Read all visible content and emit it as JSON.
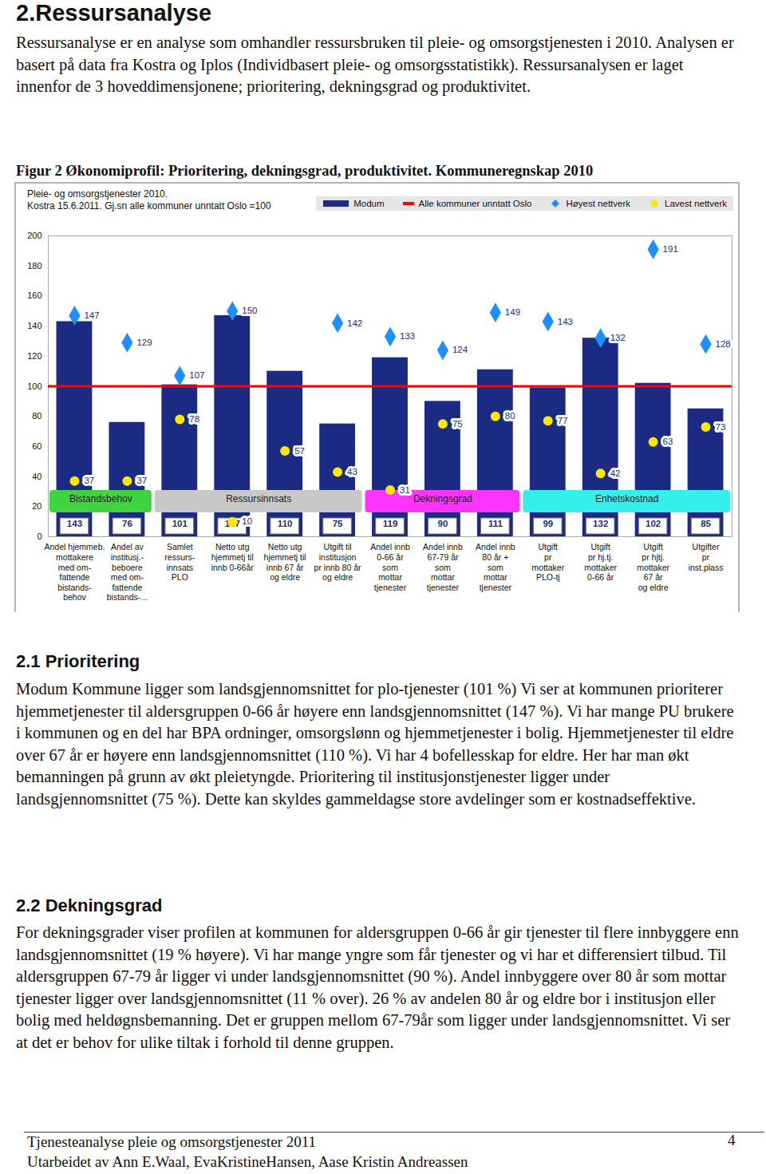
{
  "heading": "2.Ressursanalyse",
  "intro": "Ressursanalyse er en analyse som omhandler ressursbruken til pleie- og omsorgstjenesten i 2010. Analysen er basert på data fra Kostra og Iplos (Individbasert pleie- og omsorgsstatistikk). Ressursanalysen er laget innenfor de 3 hoveddimensjonene; prioritering, dekningsgrad og produktivitet.",
  "figure_caption": "Figur 2 Økonomiprofil: Prioritering, dekningsgrad, produktivitet. Kommuneregnskap 2010",
  "chart_data": {
    "type": "bar",
    "title": "Pleie- og omsorgstjenester 2010.",
    "subtitle": "Kostra 15.6.2011. Gj.sn alle kommuner unntatt Oslo =100",
    "categories": [
      "Andel hjemmeb.\nmottakere\nmed om-\nfattende\nbistands-\nbehov",
      "Andel av\ninstitusj.-\nbeboere\nmed om-\nfattende\nbistands-...",
      "Samlet\nressurs-\ninnsats\nPLO",
      "Netto utg\nhjemmetj til\ninnb 0-66år",
      "Netto utg\nhjemmetj til\ninnb 67 år\nog eldre",
      "Utgift til\ninstitusjon\npr innb 80 år\nog eldre",
      "Andel innb\n0-66 år\nsom\nmottar\ntjenester",
      "Andel innb\n67-79 år\nsom\nmottar\ntjenester",
      "Andel innb\n80 år +\nsom\nmottar\ntjenester",
      "Utgift\npr\nmottaker\nPLO-tj",
      "Utgift\npr hj.tj.\nmottaker\n0-66 år",
      "Utgift\npr hjtj.\nmottaker\n67 år\nog eldre",
      "Utgifter\npr\ninst.plass"
    ],
    "series": [
      {
        "name": "Modum",
        "type": "bar",
        "color": "#1b2a83",
        "values": [
          143,
          76,
          101,
          147,
          110,
          75,
          119,
          90,
          111,
          99,
          132,
          102,
          85
        ]
      },
      {
        "name": "Høyest nettverk",
        "type": "scatter",
        "marker": "diamond",
        "color": "#1e8fff",
        "values": [
          147,
          129,
          107,
          150,
          null,
          142,
          133,
          124,
          149,
          143,
          132,
          191,
          128
        ]
      },
      {
        "name": "Lavest nettverk",
        "type": "scatter",
        "marker": "circle",
        "color": "#ffe800",
        "values": [
          37,
          37,
          78,
          10,
          57,
          43,
          31,
          75,
          80,
          77,
          42,
          63,
          73
        ]
      }
    ],
    "reference_line": {
      "name": "Alle kommuner unntatt Oslo",
      "value": 100,
      "color": "#ff0000"
    },
    "groups": [
      {
        "name": "Bistandsbehov",
        "span": 2,
        "color": "#3fd43f"
      },
      {
        "name": "Ressursinnsats",
        "span": 4,
        "color": "#c8c8c8"
      },
      {
        "name": "Dekningsgrad",
        "span": 3,
        "color": "#ff33ff"
      },
      {
        "name": "Enhetskostnad",
        "span": 4,
        "color": "#33f0ea"
      }
    ],
    "ylim": [
      0,
      200
    ],
    "yticks": [
      0,
      20,
      40,
      60,
      80,
      100,
      120,
      140,
      160,
      180,
      200
    ],
    "data_labels": true,
    "legend": "top"
  },
  "sections": [
    {
      "heading": "2.1 Prioritering",
      "text": "Modum Kommune ligger som landsgjennomsnittet for plo-tjenester (101 %) Vi ser at kommunen prioriterer hjemmetjenester til aldersgruppen 0-66 år høyere enn landsgjennomsnittet (147 %). Vi har mange PU brukere i kommunen og en del har BPA ordninger, omsorgslønn og hjemmetjenester i bolig. Hjemmetjenester til eldre over 67 år er høyere enn landsgjennomsnittet (110 %). Vi har 4 bofellesskap for eldre. Her har man økt bemanningen på grunn av økt pleietyngde. Prioritering til institusjonstjenester ligger under landsgjennomsnittet (75 %). Dette kan skyldes gammeldagse store avdelinger som er kostnadseffektive."
    },
    {
      "heading": "2.2 Dekningsgrad",
      "text": "For dekningsgrader viser profilen at kommunen for aldersgruppen 0-66 år gir tjenester til flere innbyggere enn landsgjennomsnittet (19 % høyere). Vi har mange yngre som får tjenester og vi har et differensiert tilbud. Til aldersgruppen 67-79 år ligger vi under landsgjennomsnittet (90 %). Andel innbyggere over 80 år som mottar tjenester ligger over landsgjennomsnittet (11 % over). 26 % av andelen 80 år og eldre bor i institusjon eller bolig med heldøgnsbemanning. Det er gruppen mellom 67-79år som ligger under landsgjennomsnittet. Vi ser at det er behov for ulike tiltak i forhold til denne gruppen."
    }
  ],
  "footer": {
    "title": "Tjenesteanalyse pleie og omsorgstjenester 2011",
    "page": 4,
    "authors": "Utarbeidet av Ann E.Waal, EvaKristineHansen, Aase Kristin Andreassen"
  }
}
